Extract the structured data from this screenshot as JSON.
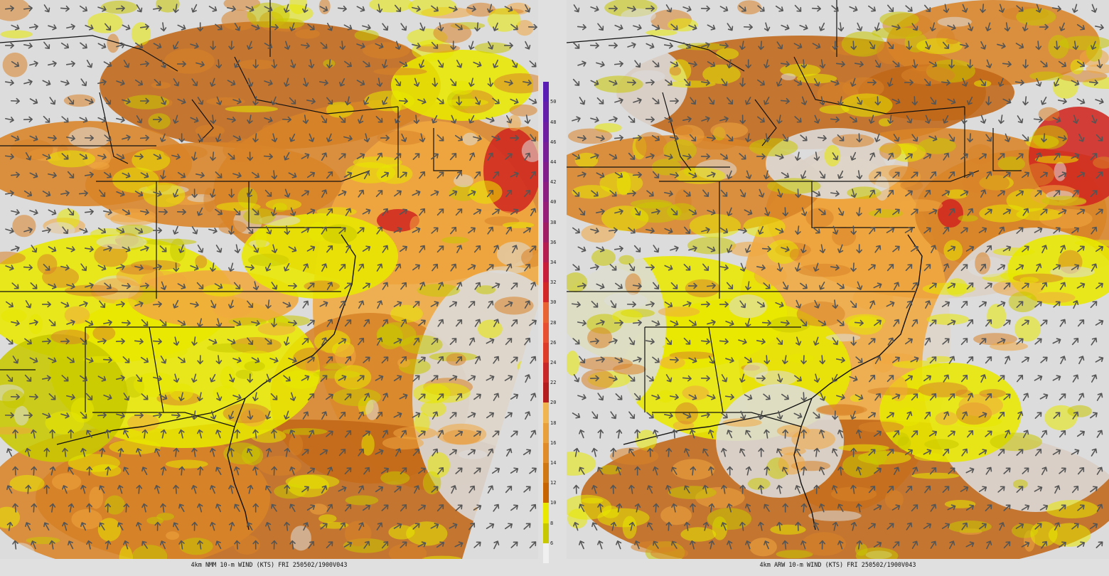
{
  "left_panel": {
    "caption": "4km NMM 10-m WIND (KTS) FRI 250502/1900V043"
  },
  "right_panel": {
    "caption": "4km ARW 10-m WIND (KTS) FRI 250502/1900V043"
  },
  "colorbar": {
    "ticks": [
      "6",
      "8",
      "10",
      "12",
      "14",
      "16",
      "18",
      "20",
      "22",
      "24",
      "26",
      "28",
      "30",
      "32",
      "34",
      "36",
      "38",
      "40",
      "42",
      "44",
      "46",
      "48",
      "50"
    ],
    "colors": [
      "#f0f0f0",
      "#c8c800",
      "#e8e800",
      "#c86400",
      "#d07814",
      "#e08c28",
      "#e8a03c",
      "#f0b450",
      "#b41e1e",
      "#c82828",
      "#dc3c28",
      "#e85032",
      "#e86432",
      "#d22828",
      "#c81e3c",
      "#b41e50",
      "#a01e64",
      "#961e78",
      "#8c1e82",
      "#821e8c",
      "#781e96",
      "#6e1ea0",
      "#641eaa",
      "#5a1eb4"
    ]
  },
  "colors": {
    "calm": "#dcdcdc",
    "yellow_dark": "#c8c800",
    "yellow": "#e8e800",
    "orange_light": "#f0a840",
    "orange": "#d88428",
    "orange_dark": "#c06818",
    "red": "#d02820",
    "arrow": "#555555",
    "border": "#111111"
  }
}
